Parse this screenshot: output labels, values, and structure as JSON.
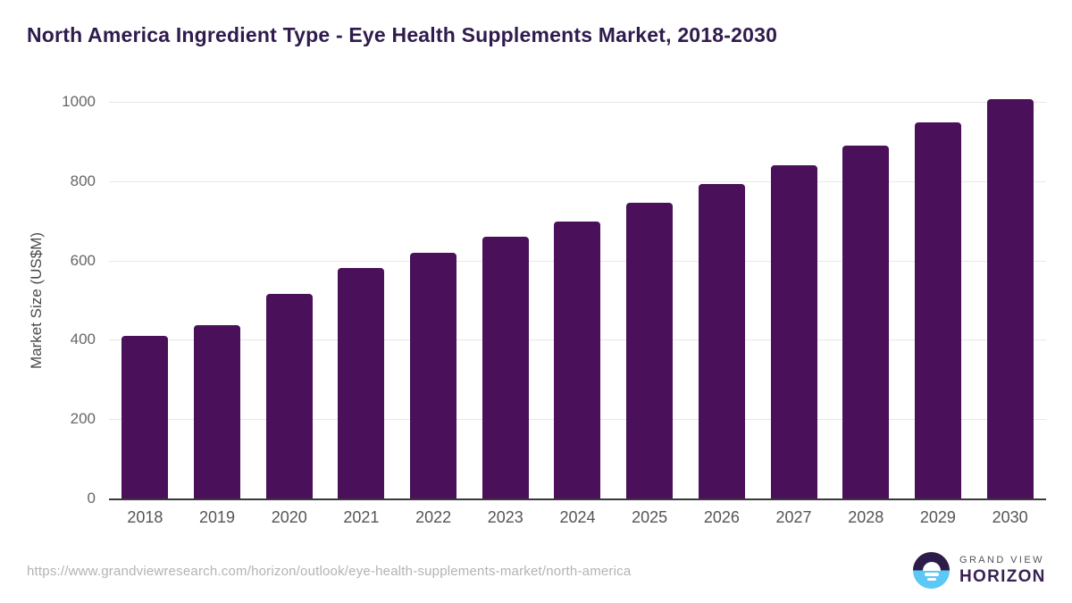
{
  "title": "North America Ingredient Type - Eye Health Supplements Market, 2018-2030",
  "chart_data": {
    "type": "bar",
    "title": "North America Ingredient Type - Eye Health Supplements Market, 2018-2030",
    "categories": [
      "2018",
      "2019",
      "2020",
      "2021",
      "2022",
      "2023",
      "2024",
      "2025",
      "2026",
      "2027",
      "2028",
      "2029",
      "2030"
    ],
    "values": [
      410,
      437,
      516,
      581,
      619,
      660,
      698,
      745,
      793,
      840,
      890,
      948,
      1007
    ],
    "xlabel": "",
    "ylabel": "Market Size (US$M)",
    "ylim": [
      0,
      1000
    ],
    "yticks": [
      0,
      200,
      400,
      600,
      800,
      1000
    ],
    "grid": true,
    "legend": false,
    "bar_color": "#4a1059"
  },
  "footer": {
    "source_url": "https://www.grandviewresearch.com/horizon/outlook/eye-health-supplements-market/north-america",
    "logo": {
      "line1": "GRAND VIEW",
      "line2": "HORIZON"
    }
  },
  "colors": {
    "title": "#2f1b4d",
    "bar": "#4a1059",
    "gridline": "#e7e7e7",
    "axis_line": "#3a3a3a",
    "tick_text": "#666666",
    "logo_purple": "#2d1b4a",
    "logo_blue": "#5bc8f5"
  }
}
